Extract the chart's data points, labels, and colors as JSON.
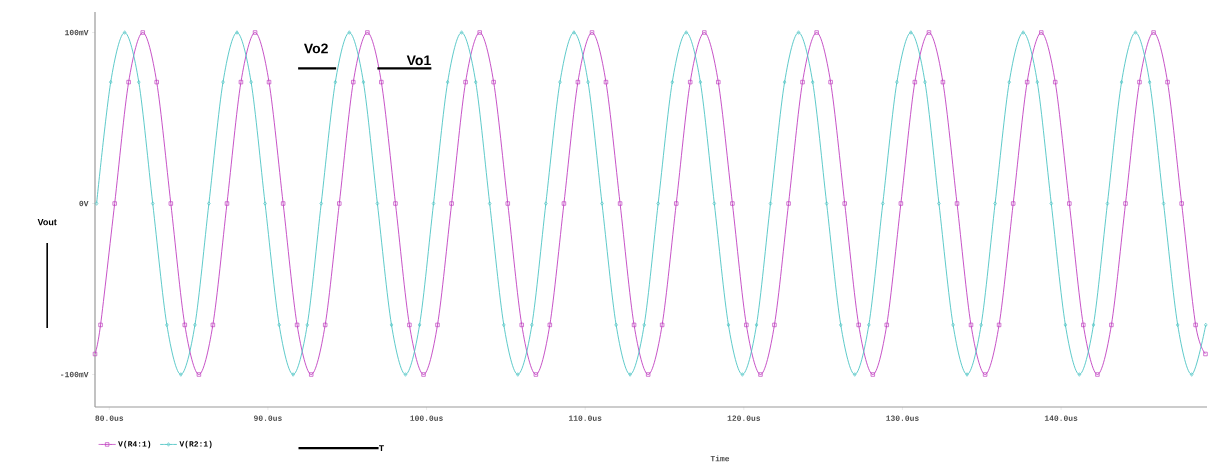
{
  "chart_data": {
    "type": "line",
    "xlabel": "Time",
    "ylabel": "Vout",
    "annotations": [
      {
        "text": "Vo2",
        "x": 94.3,
        "y": 79
      },
      {
        "text": "Vo1",
        "x": 96.9,
        "y": 79
      },
      "T"
    ],
    "xlim": [
      79.1,
      149.2
    ],
    "ylim": [
      -119,
      112
    ],
    "xticks": [
      {
        "value": 80,
        "label": "80.0us"
      },
      {
        "value": 90,
        "label": "90.0us"
      },
      {
        "value": 100,
        "label": "100.0us"
      },
      {
        "value": 110,
        "label": "110.0us"
      },
      {
        "value": 120,
        "label": "120.0us"
      },
      {
        "value": 130,
        "label": "130.0us"
      },
      {
        "value": 140,
        "label": "140.0us"
      }
    ],
    "yticks": [
      {
        "value": -100,
        "label": "-100mV"
      },
      {
        "value": 0,
        "label": "0V"
      },
      {
        "value": 100,
        "label": "100mV"
      }
    ],
    "grid": false,
    "legend": "bottom left",
    "series": [
      {
        "name": "V(R4:1)",
        "color": "#c040c0",
        "marker": "square",
        "x": [
          79.1,
          79.45,
          80.34,
          81.22,
          82.11,
          82.99,
          83.88,
          84.76,
          85.65,
          86.53,
          87.42,
          88.3,
          89.19,
          90.07,
          90.96,
          91.84,
          92.73,
          93.61,
          94.5,
          95.38,
          96.27,
          97.15,
          98.04,
          98.92,
          99.81,
          100.69,
          101.58,
          102.46,
          103.35,
          104.23,
          105.12,
          106.0,
          106.89,
          107.77,
          108.66,
          109.54,
          110.43,
          111.31,
          112.2,
          113.08,
          113.97,
          114.85,
          115.74,
          116.62,
          117.51,
          118.39,
          119.28,
          120.16,
          121.05,
          121.93,
          122.82,
          123.7,
          124.59,
          125.47,
          126.36,
          127.24,
          128.13,
          129.01,
          129.9,
          130.78,
          131.67,
          132.55,
          133.44,
          134.32,
          135.21,
          136.09,
          136.98,
          137.86,
          138.75,
          139.63,
          140.52,
          141.4,
          142.29,
          143.17,
          144.06,
          144.94,
          145.83,
          146.71,
          147.6,
          148.48,
          149.1
        ],
        "values": [
          -88,
          -71,
          0,
          71,
          100,
          71,
          0,
          -71,
          -100,
          -71,
          0,
          71,
          100,
          71,
          0,
          -71,
          -100,
          -71,
          0,
          71,
          100,
          71,
          0,
          -71,
          -100,
          -71,
          0,
          71,
          100,
          71,
          0,
          -71,
          -100,
          -71,
          0,
          71,
          100,
          71,
          0,
          -71,
          -100,
          -71,
          0,
          71,
          100,
          71,
          0,
          -71,
          -100,
          -71,
          0,
          71,
          100,
          71,
          0,
          -71,
          -100,
          -71,
          0,
          71,
          100,
          71,
          0,
          -71,
          -100,
          -71,
          0,
          71,
          100,
          71,
          0,
          -71,
          -100,
          -71,
          0,
          71,
          100,
          71,
          0,
          -71,
          -88
        ]
      },
      {
        "name": "V(R2:1)",
        "color": "#4cc4c4",
        "marker": "diamond",
        "x": [
          79.2,
          80.09,
          80.97,
          81.86,
          82.74,
          83.63,
          84.51,
          85.4,
          86.28,
          87.17,
          88.05,
          88.94,
          89.82,
          90.71,
          91.59,
          92.48,
          93.36,
          94.25,
          95.13,
          96.02,
          96.9,
          97.79,
          98.67,
          99.56,
          100.44,
          101.33,
          102.21,
          103.1,
          103.98,
          104.87,
          105.75,
          106.64,
          107.52,
          108.41,
          109.29,
          110.18,
          111.06,
          111.95,
          112.83,
          113.72,
          114.6,
          115.49,
          116.37,
          117.26,
          118.14,
          119.03,
          119.91,
          120.8,
          121.68,
          122.57,
          123.45,
          124.34,
          125.22,
          126.11,
          126.99,
          127.88,
          128.76,
          129.65,
          130.53,
          131.42,
          132.3,
          133.19,
          134.07,
          134.96,
          135.84,
          136.73,
          137.61,
          138.5,
          139.38,
          140.27,
          141.15,
          142.04,
          142.92,
          143.81,
          144.69,
          145.58,
          146.46,
          147.35,
          148.23,
          149.12
        ],
        "values": [
          0,
          71,
          100,
          71,
          0,
          -71,
          -100,
          -71,
          0,
          71,
          100,
          71,
          0,
          -71,
          -100,
          -71,
          0,
          71,
          100,
          71,
          0,
          -71,
          -100,
          -71,
          0,
          71,
          100,
          71,
          0,
          -71,
          -100,
          -71,
          0,
          71,
          100,
          71,
          0,
          -71,
          -100,
          -71,
          0,
          71,
          100,
          71,
          0,
          -71,
          -100,
          -71,
          0,
          71,
          100,
          71,
          0,
          -71,
          -100,
          -71,
          0,
          71,
          100,
          71,
          0,
          -71,
          -100,
          -71,
          0,
          71,
          100,
          71,
          0,
          -71,
          -100,
          -71,
          0,
          71,
          100,
          71,
          0,
          -71,
          -100,
          -71
        ]
      }
    ]
  }
}
